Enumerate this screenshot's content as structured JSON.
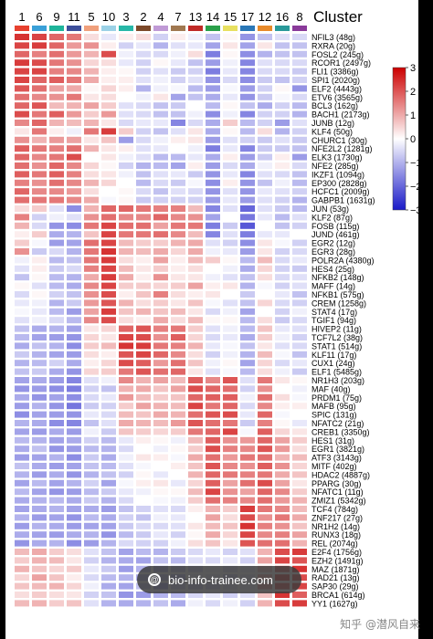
{
  "chart_data": {
    "type": "heatmap",
    "title": "",
    "legend_title": "Cluster",
    "columns": [
      "1",
      "6",
      "9",
      "11",
      "5",
      "10",
      "3",
      "2",
      "4",
      "7",
      "13",
      "14",
      "15",
      "17",
      "12",
      "16",
      "8"
    ],
    "column_colors": [
      "#e8412f",
      "#3aa0d8",
      "#1fb59b",
      "#3d4f9b",
      "#f0a07c",
      "#9bd1e6",
      "#28b8a8",
      "#7d4a2a",
      "#c09ad6",
      "#a07850",
      "#c02a27",
      "#2aa04a",
      "#e8e060",
      "#2a78b8",
      "#e88a2a",
      "#2a9a9a",
      "#8a3a9a"
    ],
    "rows": [
      "NFIL3 (48g)",
      "RXRA (20g)",
      "FOSL2 (245g)",
      "RCOR1 (2497g)",
      "FLI1 (3386g)",
      "SPI1 (2020g)",
      "ELF2 (4443g)",
      "ETV6 (3565g)",
      "BCL3 (162g)",
      "BACH1 (2173g)",
      "JUNB (12g)",
      "KLF4 (50g)",
      "CHURC1 (30g)",
      "NFE2L2 (1281g)",
      "ELK3 (1730g)",
      "NFE2 (285g)",
      "IKZF1 (1094g)",
      "EP300 (2828g)",
      "HCFC1 (2009g)",
      "GABPB1 (1631g)",
      "JUN (53g)",
      "KLF2 (87g)",
      "FOSB (115g)",
      "JUND (461g)",
      "EGR2 (12g)",
      "EGR3 (28g)",
      "POLR2A (4380g)",
      "HES4 (25g)",
      "NFKB2 (148g)",
      "MAFF (14g)",
      "NFKB1 (575g)",
      "CREM (1258g)",
      "STAT4 (17g)",
      "TGIF1 (94g)",
      "HIVEP2 (11g)",
      "TCF7L2 (38g)",
      "STAT1 (514g)",
      "KLF11 (17g)",
      "CUX1 (24g)",
      "ELF1 (5485g)",
      "NR1H3 (203g)",
      "MAF (40g)",
      "PRDM1 (75g)",
      "MAFB (95g)",
      "SPIC (131g)",
      "NFATC2 (21g)",
      "CREB1 (3350g)",
      "HES1 (31g)",
      "EGR1 (3821g)",
      "ATF3 (3143g)",
      "MITF (402g)",
      "HDAC2 (4887g)",
      "PPARG (30g)",
      "NFATC1 (11g)",
      "ZMIZ1 (5342g)",
      "TCF4 (784g)",
      "ZNF217 (27g)",
      "NR1H2 (14g)",
      "RUNX3 (18g)",
      "REL (2074g)",
      "E2F4 (1756g)",
      "EZH2 (1491g)",
      "MAZ (1871g)",
      "RAD21 (13g)",
      "SAP30 (29g)",
      "BRCA1 (614g)",
      "YY1 (1627g)"
    ],
    "colorbar": {
      "ticks": [
        3,
        2,
        1,
        0,
        -1,
        -2,
        -3
      ],
      "range": [
        -3,
        3
      ],
      "colors": [
        "#1a1ac8",
        "#ffffff",
        "#cc0000"
      ]
    },
    "values": [
      [
        2.4,
        2.2,
        1.8,
        1.6,
        0.4,
        -0.3,
        0.2,
        0.4,
        -0.6,
        0.2,
        -0.2,
        -0.8,
        0.1,
        -1.4,
        -0.8,
        -0.4,
        -0.5
      ],
      [
        2.2,
        2.3,
        1.8,
        1.2,
        1.3,
        0.2,
        -0.6,
        -0.3,
        -1.0,
        -0.4,
        -0.3,
        -1.2,
        0.3,
        -1.2,
        0.3,
        -0.8,
        -0.8
      ],
      [
        1.8,
        1.5,
        1.7,
        1.2,
        0.9,
        2.1,
        -0.2,
        -0.5,
        -0.5,
        -0.2,
        0.4,
        -1.7,
        0.1,
        -1.5,
        -1.0,
        -0.8,
        -0.8
      ],
      [
        2.3,
        2.1,
        1.6,
        1.3,
        0.5,
        0.4,
        -0.3,
        -0.6,
        0.1,
        -0.3,
        -0.8,
        -1.3,
        -0.2,
        -1.6,
        -0.4,
        -0.5,
        -0.5
      ],
      [
        2.2,
        2.2,
        1.5,
        1.4,
        0.9,
        0.2,
        0.1,
        -0.6,
        -0.4,
        -0.7,
        -0.6,
        -1.7,
        -0.3,
        -1.6,
        -0.5,
        -0.5,
        -0.7
      ],
      [
        2.2,
        1.8,
        1.9,
        1.6,
        1.0,
        0.2,
        0.2,
        -0.4,
        -0.2,
        -0.6,
        -0.4,
        -1.4,
        -0.5,
        -1.5,
        -0.7,
        -0.8,
        -0.6
      ],
      [
        2.0,
        1.7,
        1.1,
        1.0,
        0.1,
        0.5,
        0.2,
        -1.0,
        -0.2,
        -0.1,
        -0.9,
        -1.3,
        -0.1,
        -1.3,
        -0.6,
        0.1,
        -1.4
      ],
      [
        1.7,
        1.4,
        1.3,
        1.6,
        0.3,
        0.4,
        0.0,
        -0.2,
        0.3,
        -1.2,
        -0.8,
        -1.1,
        -0.3,
        -1.4,
        -0.7,
        -0.1,
        -0.5
      ],
      [
        1.8,
        2.0,
        0.8,
        0.9,
        1.1,
        0.6,
        -0.4,
        -0.5,
        -0.8,
        -0.7,
        0.0,
        -0.9,
        0.1,
        -0.8,
        -1.1,
        -0.6,
        -0.9
      ],
      [
        2.1,
        1.6,
        1.9,
        1.2,
        0.6,
        1.2,
        -0.4,
        -0.5,
        -0.8,
        -0.8,
        -0.2,
        -1.5,
        -0.2,
        -1.6,
        -0.6,
        -0.6,
        -1.0
      ],
      [
        1.4,
        1.8,
        0.9,
        0.8,
        0.9,
        0.3,
        -0.5,
        -0.3,
        -0.3,
        -1.6,
        -0.5,
        -1.1,
        0.6,
        -0.9,
        -0.6,
        -1.3,
        -0.4
      ],
      [
        0.3,
        1.6,
        0.2,
        -0.2,
        1.6,
        2.3,
        0.6,
        -0.6,
        -0.8,
        -0.4,
        0.3,
        -1.1,
        0.1,
        -0.9,
        0.4,
        -1.0,
        -0.6
      ],
      [
        1.3,
        0.9,
        1.2,
        1.1,
        0.3,
        0.7,
        -1.3,
        -0.5,
        -0.2,
        0.2,
        0.3,
        -1.3,
        -0.4,
        -0.6,
        -0.7,
        -0.4,
        -0.7
      ],
      [
        1.9,
        1.6,
        1.5,
        1.7,
        0.9,
        0.3,
        0.2,
        -0.4,
        -0.3,
        0.0,
        -0.2,
        -1.7,
        -0.3,
        -1.6,
        -0.7,
        -0.7,
        -0.8
      ],
      [
        1.8,
        1.4,
        1.6,
        2.1,
        0.0,
        0.3,
        -0.2,
        -0.4,
        -0.9,
        -0.9,
        -0.3,
        -1.1,
        0.2,
        -1.3,
        -0.7,
        0.2,
        -1.3
      ],
      [
        1.7,
        1.3,
        1.8,
        1.4,
        0.5,
        0.1,
        -0.6,
        -1.0,
        -0.9,
        -1.2,
        0.2,
        -1.3,
        -0.5,
        -1.1,
        -0.2,
        0.2,
        -0.5
      ],
      [
        1.9,
        1.6,
        1.9,
        1.5,
        0.4,
        0.3,
        -0.2,
        -0.8,
        -0.4,
        -0.3,
        -0.7,
        -1.4,
        -0.3,
        -1.6,
        -0.4,
        -0.5,
        -0.8
      ],
      [
        1.5,
        1.3,
        1.7,
        1.4,
        0.9,
        0.5,
        0.0,
        -0.9,
        -0.5,
        -0.7,
        -0.1,
        -1.5,
        0.2,
        -1.4,
        -0.8,
        -0.2,
        -0.9
      ],
      [
        1.8,
        1.4,
        1.4,
        1.2,
        0.4,
        0.0,
        0.1,
        -0.5,
        -0.8,
        -0.4,
        -0.5,
        -1.4,
        -0.4,
        -1.4,
        -0.3,
        -0.4,
        -0.6
      ],
      [
        1.7,
        1.6,
        1.6,
        1.4,
        1.0,
        -0.1,
        0.1,
        -0.7,
        -0.6,
        -0.6,
        -0.6,
        -1.3,
        -0.3,
        -1.3,
        -0.4,
        -0.6,
        -1.0
      ],
      [
        0.4,
        0.6,
        -0.4,
        -1.5,
        0.9,
        1.8,
        1.8,
        1.6,
        1.5,
        1.5,
        0.8,
        -1.6,
        -0.4,
        -2.0,
        -0.4,
        -0.7,
        -0.9
      ],
      [
        1.5,
        -0.6,
        -0.2,
        -0.4,
        1.3,
        1.7,
        1.4,
        1.4,
        1.8,
        1.4,
        1.3,
        -1.2,
        0.0,
        -1.8,
        -0.3,
        -0.9,
        -0.4
      ],
      [
        0.9,
        -0.5,
        -1.4,
        -1.5,
        1.6,
        2.2,
        1.7,
        1.7,
        1.1,
        1.6,
        1.6,
        -1.7,
        -0.7,
        -2.2,
        0.0,
        -0.8,
        -0.6
      ],
      [
        0.2,
        0.6,
        -1.1,
        -1.0,
        0.7,
        2.2,
        1.6,
        1.6,
        1.7,
        1.4,
        0.8,
        -1.6,
        -0.4,
        -1.7,
        -0.3,
        -0.3,
        0.0
      ],
      [
        0.6,
        -0.1,
        -1.3,
        -1.2,
        1.7,
        2.2,
        0.8,
        0.6,
        0.6,
        0.9,
        1.0,
        -0.4,
        -0.6,
        -1.5,
        0.3,
        -0.1,
        -0.6
      ],
      [
        1.3,
        -0.7,
        -0.5,
        -1.0,
        1.6,
        2.4,
        0.9,
        0.8,
        1.0,
        0.5,
        1.0,
        -0.2,
        -0.3,
        -1.3,
        0.3,
        -0.6,
        -0.5
      ],
      [
        -0.2,
        0.2,
        -0.9,
        -0.8,
        1.6,
        2.3,
        0.4,
        0.2,
        1.1,
        0.2,
        0.8,
        0.6,
        0.1,
        -0.9,
        0.8,
        -0.5,
        -0.3
      ],
      [
        -0.4,
        0.2,
        -0.7,
        -0.5,
        1.5,
        2.2,
        0.8,
        0.3,
        0.6,
        0.2,
        0.4,
        0.0,
        -0.2,
        -1.1,
        0.5,
        -0.6,
        -0.7
      ],
      [
        -0.8,
        0.1,
        -0.9,
        -1.0,
        1.0,
        2.3,
        1.0,
        0.2,
        1.3,
        0.3,
        0.3,
        -0.2,
        -0.4,
        -0.8,
        0.4,
        -0.5,
        -0.4
      ],
      [
        0.1,
        -0.4,
        -0.9,
        -1.1,
        1.4,
        2.2,
        0.6,
        0.6,
        0.5,
        0.6,
        1.1,
        0.2,
        0.3,
        -1.0,
        -0.1,
        -0.6,
        -0.4
      ],
      [
        -0.5,
        0.1,
        -0.6,
        -0.8,
        1.3,
        2.1,
        0.2,
        0.7,
        1.5,
        0.4,
        0.2,
        0.3,
        0.0,
        -0.7,
        0.0,
        -0.3,
        -0.8
      ],
      [
        -0.3,
        -0.2,
        -1.0,
        -0.7,
        1.2,
        2.0,
        0.9,
        0.4,
        0.6,
        0.3,
        0.7,
        -0.1,
        -0.4,
        -0.8,
        0.5,
        -0.5,
        -0.6
      ],
      [
        -0.1,
        -0.3,
        -0.9,
        -1.3,
        1.1,
        2.3,
        0.7,
        0.9,
        0.7,
        0.8,
        0.3,
        -0.5,
        -0.2,
        -1.2,
        0.0,
        -0.6,
        -0.2
      ],
      [
        -0.4,
        -0.2,
        -0.5,
        -0.9,
        1.4,
        2.1,
        0.4,
        0.2,
        1.0,
        0.4,
        0.8,
        0.1,
        0.1,
        -0.9,
        0.4,
        -0.7,
        -0.5
      ],
      [
        -0.8,
        -1.1,
        -1.0,
        -1.2,
        0.3,
        0.5,
        1.8,
        2.0,
        1.5,
        1.6,
        0.6,
        -0.4,
        -0.2,
        -0.9,
        0.7,
        -0.3,
        -0.4
      ],
      [
        -0.9,
        -1.2,
        -1.3,
        -1.4,
        0.5,
        0.3,
        2.2,
        2.1,
        1.3,
        1.9,
        0.5,
        -0.5,
        -0.3,
        -1.1,
        0.6,
        -0.2,
        -0.6
      ],
      [
        -1.1,
        -0.8,
        -1.0,
        -1.5,
        0.6,
        0.8,
        2.4,
        2.3,
        1.6,
        1.5,
        0.9,
        -0.3,
        -0.1,
        -0.8,
        0.3,
        -0.4,
        -0.5
      ],
      [
        -0.7,
        -1.0,
        -1.2,
        -1.3,
        0.4,
        0.2,
        2.0,
        2.2,
        1.8,
        1.4,
        0.4,
        -0.6,
        -0.2,
        -1.0,
        0.8,
        -0.1,
        -0.8
      ],
      [
        -1.0,
        -0.9,
        -0.6,
        -1.1,
        0.2,
        0.5,
        2.1,
        1.9,
        1.2,
        1.7,
        0.7,
        -0.2,
        0.1,
        -1.2,
        0.5,
        -0.5,
        -0.3
      ],
      [
        -0.8,
        -0.7,
        -1.1,
        -1.4,
        0.5,
        0.6,
        1.6,
        2.0,
        1.7,
        1.8,
        0.3,
        -0.4,
        -0.1,
        -0.9,
        0.4,
        -0.2,
        -0.7
      ],
      [
        -1.2,
        -1.1,
        -1.3,
        -1.6,
        -0.4,
        -0.2,
        1.4,
        0.9,
        1.1,
        0.8,
        1.9,
        1.4,
        2.0,
        -0.4,
        1.6,
        0.3,
        0.1
      ],
      [
        -1.4,
        -1.3,
        -1.5,
        -1.7,
        -0.6,
        -0.8,
        0.9,
        1.0,
        0.7,
        1.1,
        2.1,
        1.8,
        1.7,
        -0.6,
        1.3,
        0.0,
        -0.2
      ],
      [
        -1.1,
        -1.4,
        -1.2,
        -1.5,
        -0.5,
        -0.3,
        1.2,
        0.8,
        0.6,
        0.7,
        1.8,
        1.9,
        1.9,
        -0.2,
        1.7,
        0.4,
        -0.1
      ],
      [
        -1.3,
        -1.0,
        -1.4,
        -1.8,
        -0.7,
        -0.6,
        0.6,
        1.1,
        0.9,
        0.8,
        2.2,
        1.6,
        1.8,
        -0.5,
        1.4,
        0.2,
        0.2
      ],
      [
        -1.5,
        -1.2,
        -1.3,
        -1.4,
        -0.3,
        -0.5,
        0.8,
        0.7,
        1.0,
        0.9,
        1.7,
        2.0,
        2.1,
        -0.3,
        1.8,
        -0.1,
        0.0
      ],
      [
        -1.0,
        -1.1,
        -1.5,
        -1.6,
        -0.8,
        -0.4,
        1.0,
        0.9,
        0.8,
        1.2,
        2.0,
        1.7,
        1.6,
        -0.7,
        1.5,
        0.1,
        -0.3
      ],
      [
        -1.2,
        -1.3,
        -1.1,
        -1.3,
        -0.2,
        -0.7,
        0.7,
        0.6,
        0.5,
        0.6,
        1.6,
        1.8,
        2.2,
        -0.1,
        1.9,
        0.5,
        0.3
      ],
      [
        -0.9,
        -1.0,
        -1.2,
        -1.1,
        -0.6,
        -0.9,
        -0.3,
        0.2,
        0.1,
        -0.2,
        0.8,
        1.9,
        1.3,
        1.2,
        1.8,
        1.1,
        0.6
      ],
      [
        -1.1,
        -0.8,
        -1.4,
        -1.3,
        -0.9,
        -1.0,
        -0.5,
        0.0,
        -0.2,
        0.1,
        0.6,
        2.1,
        1.5,
        1.4,
        2.0,
        1.2,
        0.4
      ],
      [
        -1.3,
        -1.2,
        -1.0,
        -1.5,
        -0.7,
        -1.1,
        -0.2,
        0.3,
        0.2,
        -0.1,
        1.0,
        1.7,
        1.2,
        1.6,
        1.7,
        0.9,
        0.8
      ],
      [
        -0.8,
        -1.1,
        -1.3,
        -1.2,
        -0.8,
        -0.9,
        -0.4,
        -0.1,
        0.0,
        0.2,
        0.7,
        2.0,
        1.4,
        1.3,
        1.9,
        1.3,
        0.5
      ],
      [
        -1.0,
        -1.3,
        -1.1,
        -1.4,
        -1.0,
        -0.8,
        -0.6,
        0.1,
        -0.3,
        0.0,
        0.9,
        1.8,
        1.6,
        1.5,
        1.6,
        1.0,
        0.7
      ],
      [
        -1.2,
        -0.9,
        -1.2,
        -1.0,
        -0.6,
        -1.2,
        -0.1,
        0.2,
        0.3,
        -0.3,
        0.5,
        1.9,
        1.1,
        1.7,
        2.1,
        1.1,
        0.3
      ],
      [
        -0.9,
        -1.2,
        -1.4,
        -1.3,
        -0.9,
        -0.7,
        -0.3,
        -0.2,
        0.1,
        0.1,
        0.8,
        2.2,
        1.3,
        1.1,
        1.8,
        1.4,
        0.6
      ],
      [
        -1.1,
        -1.0,
        -0.9,
        -1.1,
        -0.7,
        -1.0,
        -0.5,
        0.0,
        -0.1,
        -0.2,
        0.6,
        1.7,
        1.5,
        1.4,
        1.7,
        1.2,
        0.9
      ],
      [
        -1.2,
        -1.1,
        -1.0,
        -1.2,
        -1.1,
        -1.3,
        -0.8,
        -0.6,
        -0.4,
        -0.5,
        0.2,
        0.9,
        0.6,
        2.3,
        1.6,
        1.4,
        0.8
      ],
      [
        -1.0,
        -1.3,
        -1.2,
        -1.4,
        -0.9,
        -1.1,
        -0.6,
        -0.8,
        -0.2,
        -0.3,
        0.0,
        1.1,
        0.4,
        2.1,
        1.3,
        1.6,
        1.0
      ],
      [
        -1.3,
        -1.0,
        -1.1,
        -1.3,
        -1.2,
        -1.2,
        -0.7,
        -0.5,
        -0.5,
        -0.4,
        0.3,
        0.8,
        0.7,
        2.4,
        1.5,
        1.3,
        0.7
      ],
      [
        -1.1,
        -1.2,
        -1.3,
        -1.1,
        -1.0,
        -1.4,
        -0.9,
        -0.7,
        -0.3,
        -0.6,
        0.1,
        1.0,
        0.5,
        2.2,
        1.4,
        1.5,
        1.1
      ],
      [
        -1.4,
        -1.1,
        -1.0,
        -1.5,
        -1.3,
        -1.0,
        -0.5,
        -0.6,
        -0.6,
        -0.2,
        0.4,
        0.7,
        0.3,
        2.0,
        1.7,
        1.7,
        0.9
      ],
      [
        0.8,
        1.0,
        0.6,
        0.4,
        -0.4,
        -0.8,
        -1.2,
        -0.9,
        -1.0,
        -0.7,
        -0.5,
        -0.3,
        -0.6,
        -0.4,
        0.9,
        2.1,
        2.3
      ],
      [
        0.6,
        0.9,
        0.8,
        0.3,
        -0.6,
        -1.0,
        -1.1,
        -1.2,
        -0.8,
        -0.9,
        -0.4,
        -0.5,
        -0.3,
        -0.6,
        1.1,
        2.2,
        2.0
      ],
      [
        0.9,
        0.7,
        0.5,
        0.6,
        -0.3,
        -0.7,
        -1.3,
        -1.0,
        -1.1,
        -0.8,
        -0.6,
        -0.2,
        -0.5,
        -0.3,
        0.8,
        1.9,
        2.4
      ],
      [
        0.5,
        1.1,
        0.7,
        0.2,
        -0.5,
        -0.9,
        -1.0,
        -1.1,
        -0.9,
        -1.0,
        -0.3,
        -0.4,
        -0.7,
        -0.5,
        1.0,
        2.3,
        2.1
      ],
      [
        0.7,
        0.8,
        0.9,
        0.5,
        -0.2,
        -1.1,
        -1.2,
        -0.8,
        -1.2,
        -0.6,
        -0.7,
        -0.6,
        -0.4,
        -0.2,
        1.2,
        2.0,
        2.2
      ],
      [
        0.4,
        0.6,
        0.4,
        0.3,
        -0.6,
        -0.8,
        -1.4,
        -1.3,
        -1.0,
        -0.9,
        -0.5,
        -0.3,
        -0.6,
        -0.4,
        0.7,
        2.4,
        1.9
      ],
      [
        0.8,
        0.9,
        0.6,
        0.7,
        -0.4,
        -1.0,
        -1.1,
        -1.0,
        -0.8,
        -1.1,
        -0.2,
        -0.5,
        -0.2,
        -0.6,
        0.9,
        2.1,
        2.3
      ]
    ]
  },
  "watermark": {
    "text": "bio-info-trainee.com",
    "icon": "at-icon"
  },
  "credit": {
    "text": "知乎 @潜风自来"
  }
}
